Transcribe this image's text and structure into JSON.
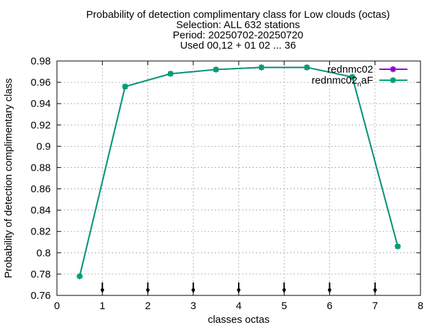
{
  "chart_data": {
    "type": "line",
    "title_lines": [
      "Probability of detection complimentary class  for Low clouds (octas)",
      "Selection: ALL    632 stations",
      "Period: 20250702-20250720",
      "Used 00,12 + 01 02 ... 36"
    ],
    "xlabel": "classes octas",
    "ylabel": "Probability of detection complimentary class",
    "xlim": [
      0,
      8
    ],
    "ylim": [
      0.76,
      0.98
    ],
    "x_ticks": [
      0,
      1,
      2,
      3,
      4,
      5,
      6,
      7,
      8
    ],
    "x_tick_labels": [
      "0",
      "1",
      "2",
      "3",
      "4",
      "5",
      "6",
      "7",
      "8"
    ],
    "y_ticks": [
      0.76,
      0.78,
      0.8,
      0.82,
      0.84,
      0.86,
      0.88,
      0.9,
      0.92,
      0.94,
      0.96,
      0.98
    ],
    "y_tick_labels": [
      "0.76",
      "0.78",
      "0.8",
      "0.82",
      "0.84",
      "0.86",
      "0.88",
      "0.9",
      "0.92",
      "0.94",
      "0.96",
      "0.98"
    ],
    "grid": true,
    "legend_position": "top-right",
    "x": [
      0.5,
      1.5,
      2.5,
      3.5,
      4.5,
      5.5,
      6.5,
      7.5
    ],
    "series": [
      {
        "name": "rednmc02",
        "color": "#9400d3",
        "values": [
          0.778,
          0.956,
          0.968,
          0.972,
          0.974,
          0.974,
          0.965,
          0.806
        ]
      },
      {
        "name": "rednmc02_naF",
        "legend_main": "rednmc02",
        "legend_sub": "n",
        "legend_rest": "aF",
        "color": "#009e73",
        "values": [
          0.778,
          0.956,
          0.968,
          0.972,
          0.974,
          0.974,
          0.965,
          0.806
        ]
      }
    ],
    "bottom_markers_x": [
      1,
      2,
      3,
      4,
      5,
      6,
      7
    ],
    "bottom_marker_color": "#000000"
  }
}
